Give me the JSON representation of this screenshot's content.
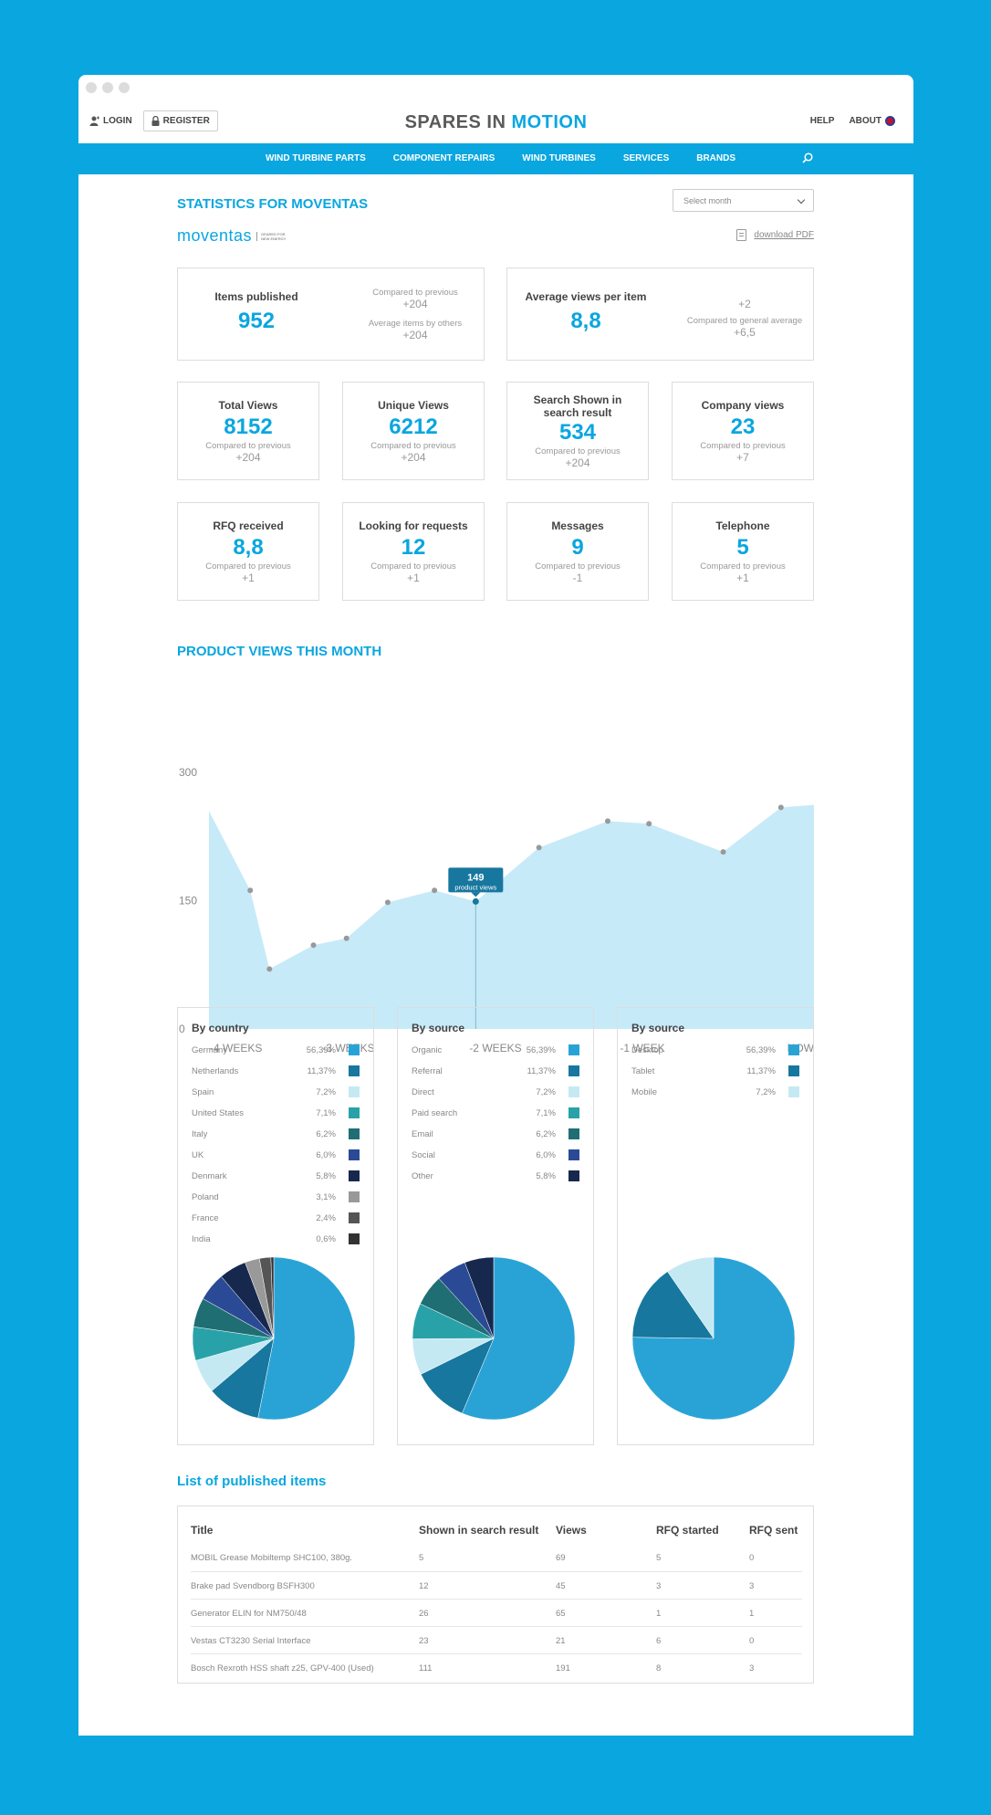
{
  "header": {
    "login": "LOGIN",
    "register": "REGISTER",
    "logo_part1": "SPARES IN ",
    "logo_part2": "MOTION",
    "help": "HELP",
    "about": "ABOUT"
  },
  "nav": {
    "items": [
      "WIND TURBINE PARTS",
      "COMPONENT REPAIRS",
      "WIND TURBINES",
      "SERVICES",
      "BRANDS"
    ]
  },
  "page": {
    "title": "STATISTICS FOR MOVENTAS",
    "select_placeholder": "Select month",
    "brand_name": "moventas",
    "brand_tagline": "GEARED FOR NEW ENERGY",
    "download": "download PDF"
  },
  "top_cards": {
    "items_published": {
      "label": "Items published",
      "value": "952",
      "cmp_label1": "Compared to previous",
      "cmp_value1": "+204",
      "cmp_label2": "Average items by others",
      "cmp_value2": "+204"
    },
    "avg_views": {
      "label": "Average views per item",
      "value": "8,8",
      "cmp_value1": "+2",
      "cmp_label2": "Compared to general average",
      "cmp_value2": "+6,5"
    }
  },
  "stat_cards": [
    {
      "label": "Total Views",
      "value": "8152",
      "cmp": "Compared to previous",
      "delta": "+204"
    },
    {
      "label": "Unique Views",
      "value": "6212",
      "cmp": "Compared to previous",
      "delta": "+204"
    },
    {
      "label": "Search Shown in search result",
      "value": "534",
      "cmp": "Compared to previous",
      "delta": "+204"
    },
    {
      "label": "Company views",
      "value": "23",
      "cmp": "Compared to previous",
      "delta": "+7"
    },
    {
      "label": "RFQ received",
      "value": "8,8",
      "cmp": "Compared to previous",
      "delta": "+1"
    },
    {
      "label": "Looking for requests",
      "value": "12",
      "cmp": "Compared to previous",
      "delta": "+1"
    },
    {
      "label": "Messages",
      "value": "9",
      "cmp": "Compared to previous",
      "delta": "-1"
    },
    {
      "label": "Telephone",
      "value": "5",
      "cmp": "Compared to previous",
      "delta": "+1"
    }
  ],
  "product_views_title": "PRODUCT VIEWS THIS MONTH",
  "chart_data": [
    {
      "type": "area",
      "title": "PRODUCT VIEWS THIS MONTH",
      "xlabel": "",
      "ylabel": "",
      "x_tick_labels": [
        "-4 WEEKS",
        "-3 WEEKS",
        "-2 WEEKS",
        "-1 WEEK",
        "NOW"
      ],
      "y_ticks": [
        0,
        150,
        300
      ],
      "ylim": [
        0,
        300
      ],
      "x": [
        0,
        0.15,
        0.22,
        0.38,
        0.5,
        0.65,
        0.82,
        0.97,
        1.2,
        1.45,
        1.6,
        1.87,
        2.08,
        2.2
      ],
      "values": [
        255,
        162,
        70,
        98,
        106,
        148,
        162,
        149,
        212,
        243,
        240,
        207,
        259,
        262
      ],
      "point_markers": [
        false,
        true,
        true,
        true,
        true,
        true,
        true,
        true,
        true,
        true,
        true,
        true,
        true,
        false
      ],
      "highlight": {
        "index": 7,
        "value": "149",
        "label": "product views"
      },
      "fill_color": "#c7eaf8",
      "grid": false
    },
    {
      "type": "pie",
      "title": "By country",
      "categories": [
        "Germany",
        "Netherlands",
        "Spain",
        "United States",
        "Italy",
        "UK",
        "Denmark",
        "Poland",
        "France",
        "India"
      ],
      "value_labels": [
        "56,39%",
        "11,37%",
        "7,2%",
        "7,1%",
        "6,2%",
        "6,0%",
        "5,8%",
        "3,1%",
        "2,4%",
        "0,6%"
      ],
      "values": [
        56.39,
        11.37,
        7.2,
        7.1,
        6.2,
        6.0,
        5.8,
        3.1,
        2.4,
        0.6
      ],
      "colors": [
        "#29a3d6",
        "#17779e",
        "#c5e9f3",
        "#28a2a8",
        "#1f6e74",
        "#2b4a96",
        "#16284e",
        "#999999",
        "#555555",
        "#333333"
      ]
    },
    {
      "type": "pie",
      "title": "By source",
      "categories": [
        "Organic",
        "Referral",
        "Direct",
        "Paid search",
        "Email",
        "Social",
        "Other"
      ],
      "value_labels": [
        "56,39%",
        "11,37%",
        "7,2%",
        "7,1%",
        "6,2%",
        "6,0%",
        "5,8%"
      ],
      "values": [
        56.39,
        11.37,
        7.2,
        7.1,
        6.2,
        6.0,
        5.8
      ],
      "colors": [
        "#29a3d6",
        "#17779e",
        "#c5e9f3",
        "#28a2a8",
        "#1f6e74",
        "#2b4a96",
        "#16284e"
      ]
    },
    {
      "type": "pie",
      "title": "By source",
      "categories": [
        "Desktop",
        "Tablet",
        "Mobile"
      ],
      "value_labels": [
        "56,39%",
        "11,37%",
        "7,2%"
      ],
      "values": [
        56.39,
        11.37,
        7.2
      ],
      "colors": [
        "#29a3d6",
        "#17779e",
        "#c5e9f3"
      ]
    }
  ],
  "table": {
    "title": "List of published items",
    "columns": [
      "Title",
      "Shown in search result",
      "Views",
      "RFQ started",
      "RFQ sent"
    ],
    "rows": [
      [
        "MOBIL Grease Mobiltemp SHC100, 380g.",
        "5",
        "69",
        "5",
        "0"
      ],
      [
        "Brake pad Svendborg BSFH300",
        "12",
        "45",
        "3",
        "3"
      ],
      [
        "Generator ELIN for NM750/48",
        "26",
        "65",
        "1",
        "1"
      ],
      [
        "Vestas CT3230 Serial Interface",
        "23",
        "21",
        "6",
        "0"
      ],
      [
        "Bosch Rexroth HSS shaft z25, GPV-400 (Used)",
        "111",
        "191",
        "8",
        "3"
      ]
    ]
  }
}
